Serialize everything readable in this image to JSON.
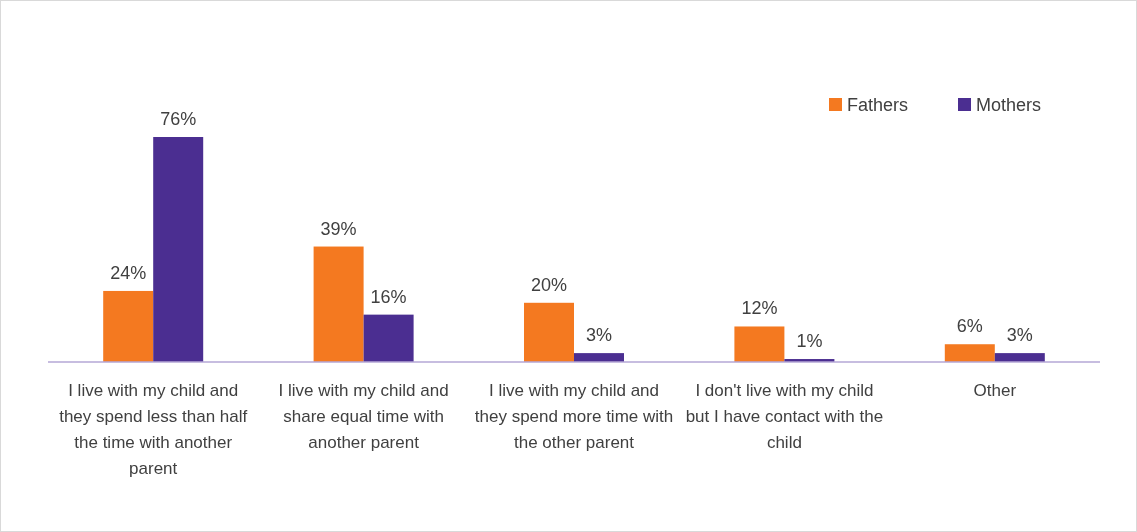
{
  "chart_data": {
    "type": "bar",
    "categories": [
      "I live with my child and they spend less than half the time with another parent",
      "I live with my child and share equal time with another parent",
      "I live with my child and they spend more time with the other parent",
      "I don't live with my child but I have contact with the child",
      "Other"
    ],
    "series": [
      {
        "name": "Fathers",
        "color": "#f47920",
        "values": [
          24,
          39,
          20,
          12,
          6
        ],
        "value_labels": [
          "24%",
          "39%",
          "20%",
          "12%",
          "6%"
        ]
      },
      {
        "name": "Mothers",
        "color": "#4b2e91",
        "values": [
          76,
          16,
          3,
          1,
          3
        ],
        "value_labels": [
          "76%",
          "16%",
          "3%",
          "1%",
          "3%"
        ]
      }
    ],
    "legend": "top right"
  }
}
